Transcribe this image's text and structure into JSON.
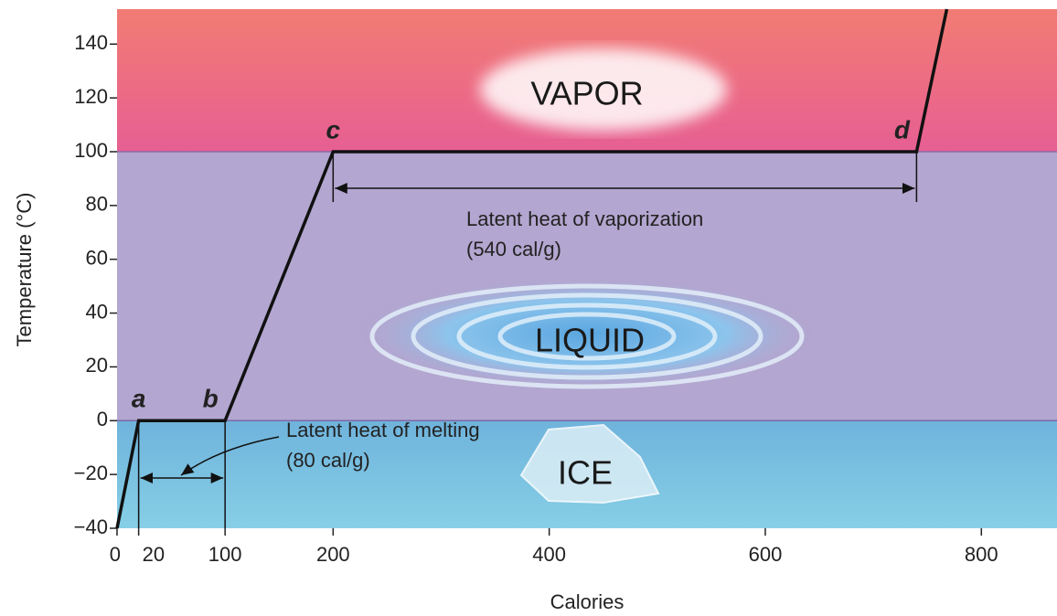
{
  "chart_data": {
    "type": "line",
    "x_label": "Calories",
    "y_label": "Temperature (°C)",
    "xlim": [
      0,
      870
    ],
    "ylim": [
      -40,
      153
    ],
    "xticks": [
      0,
      20,
      100,
      200,
      400,
      600,
      800
    ],
    "yticks": [
      {
        "value": -40,
        "label": "−40"
      },
      {
        "value": -20,
        "label": "−20"
      },
      0,
      20,
      40,
      60,
      80,
      100,
      120,
      140
    ],
    "series": [
      {
        "color": "#111111",
        "x": [
          0,
          20,
          100,
          200,
          740,
          768
        ],
        "values": [
          -40,
          0,
          0,
          100,
          100,
          153
        ]
      }
    ],
    "point_labels": [
      null,
      "a",
      "b",
      "c",
      "d",
      null
    ],
    "regions": [
      "VAPOR",
      "LIQUID",
      "ICE"
    ],
    "annotations": {
      "vaporization": [
        "Latent heat of vaporization",
        "(540 cal/g)"
      ],
      "melting": [
        "Latent heat of melting",
        "(80 cal/g)"
      ]
    }
  }
}
